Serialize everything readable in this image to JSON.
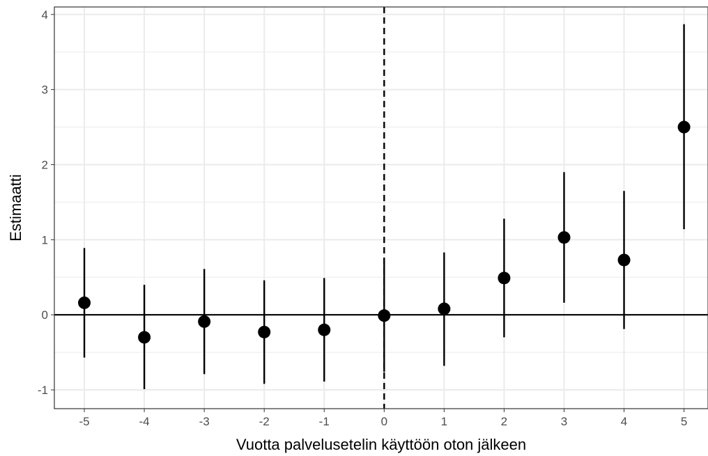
{
  "chart_data": {
    "type": "scatter",
    "title": "",
    "xlabel": "Vuotta palvelusetelin käyttöön oton jälkeen",
    "ylabel": "Estimaatti",
    "xlim": [
      -5.5,
      5.4
    ],
    "ylim": [
      -1.25,
      4.1
    ],
    "x_ticks": [
      -5,
      -4,
      -3,
      -2,
      -1,
      0,
      1,
      2,
      3,
      4,
      5
    ],
    "x_tick_labels": [
      "-5",
      "-4",
      "-3",
      "-2",
      "-1",
      "0",
      "1",
      "2",
      "3",
      "4",
      "5"
    ],
    "y_ticks": [
      -1,
      0,
      1,
      2,
      3,
      4
    ],
    "y_tick_labels": [
      "-1",
      "0",
      "1",
      "2",
      "3",
      "4"
    ],
    "grid": true,
    "reference_lines": {
      "horizontal_y": 0,
      "vertical_dashed_x": 0
    },
    "points": [
      {
        "x": -5,
        "estimate": 0.16,
        "lower": -0.57,
        "upper": 0.89
      },
      {
        "x": -4,
        "estimate": -0.3,
        "lower": -0.99,
        "upper": 0.4
      },
      {
        "x": -3,
        "estimate": -0.09,
        "lower": -0.79,
        "upper": 0.61
      },
      {
        "x": -2,
        "estimate": -0.23,
        "lower": -0.92,
        "upper": 0.46
      },
      {
        "x": -1,
        "estimate": -0.2,
        "lower": -0.89,
        "upper": 0.49
      },
      {
        "x": 0,
        "estimate": -0.01,
        "lower": -0.76,
        "upper": 0.75
      },
      {
        "x": 1,
        "estimate": 0.08,
        "lower": -0.68,
        "upper": 0.83
      },
      {
        "x": 2,
        "estimate": 0.49,
        "lower": -0.3,
        "upper": 1.28
      },
      {
        "x": 3,
        "estimate": 1.03,
        "lower": 0.16,
        "upper": 1.9
      },
      {
        "x": 4,
        "estimate": 0.73,
        "lower": -0.19,
        "upper": 1.65
      },
      {
        "x": 5,
        "estimate": 2.5,
        "lower": 1.14,
        "upper": 3.87
      }
    ],
    "colors": {
      "point": "#000000",
      "grid": "#ebebeb",
      "panel_border": "#333333",
      "tick_text": "#4d4d4d"
    }
  }
}
